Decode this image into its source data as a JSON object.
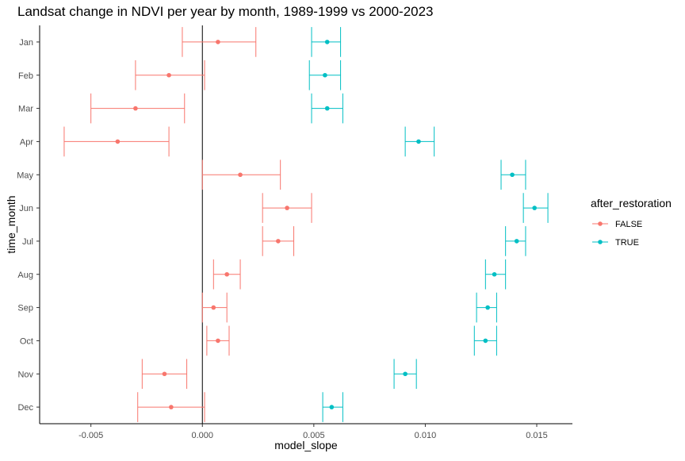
{
  "chart_data": {
    "type": "scatter",
    "title": "Landsat change in NDVI per year by month, 1989-1999 vs 2000-2023",
    "xlabel": "model_slope",
    "ylabel": "time_month",
    "xlim": [
      -0.0073,
      0.0166
    ],
    "x_ticks": [
      -0.005,
      0.0,
      0.005,
      0.01,
      0.015
    ],
    "x_tick_labels": [
      "-0.005",
      "0.000",
      "0.005",
      "0.010",
      "0.015"
    ],
    "categories": [
      "Jan",
      "Feb",
      "Mar",
      "Apr",
      "May",
      "Jun",
      "Jul",
      "Aug",
      "Sep",
      "Oct",
      "Nov",
      "Dec"
    ],
    "reference_line_x": 0,
    "grid": false,
    "legend_position": "right",
    "legend_title": "after_restoration",
    "series": [
      {
        "name": "FALSE",
        "color": "#f8766d",
        "estimate": [
          0.0007,
          -0.0015,
          -0.003,
          -0.0038,
          0.0017,
          0.0038,
          0.0034,
          0.0011,
          0.0005,
          0.0007,
          -0.0017,
          -0.0014
        ],
        "lower": [
          -0.0009,
          -0.003,
          -0.005,
          -0.0062,
          0.0,
          0.0027,
          0.0027,
          0.0005,
          0.0,
          0.0002,
          -0.0027,
          -0.0029
        ],
        "upper": [
          0.0024,
          0.0001,
          -0.0008,
          -0.0015,
          0.0035,
          0.0049,
          0.0041,
          0.0017,
          0.0011,
          0.0012,
          -0.0007,
          0.0001
        ]
      },
      {
        "name": "TRUE",
        "color": "#00bfc4",
        "estimate": [
          0.0056,
          0.0055,
          0.0056,
          0.0097,
          0.0139,
          0.0149,
          0.0141,
          0.0131,
          0.0128,
          0.0127,
          0.0091,
          0.0058
        ],
        "lower": [
          0.0049,
          0.0048,
          0.0049,
          0.0091,
          0.0134,
          0.0144,
          0.0136,
          0.0127,
          0.0123,
          0.0122,
          0.0086,
          0.0054
        ],
        "upper": [
          0.0062,
          0.0062,
          0.0063,
          0.0104,
          0.0145,
          0.0155,
          0.0145,
          0.0136,
          0.0132,
          0.0132,
          0.0096,
          0.0063
        ]
      }
    ]
  }
}
